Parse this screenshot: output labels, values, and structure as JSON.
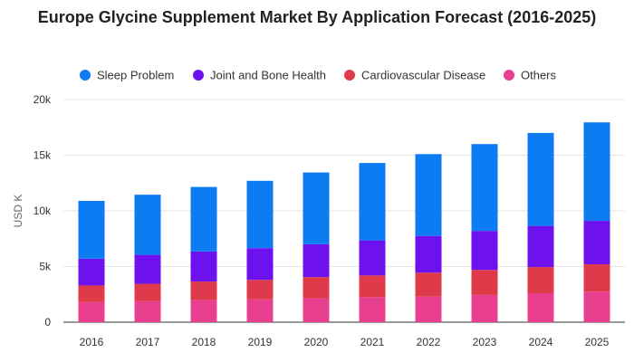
{
  "chart_data": {
    "type": "bar",
    "stacked": true,
    "title": "Europe Glycine Supplement Market By Application Forecast (2016-2025)",
    "ylabel": "USD K",
    "xlabel": "",
    "ylim": [
      0,
      20000
    ],
    "y_ticks": [
      "0",
      "5k",
      "10k",
      "15k",
      "20k"
    ],
    "y_tick_values": [
      0,
      5000,
      10000,
      15000,
      20000
    ],
    "grid": true,
    "legend_position": "top",
    "categories": [
      "2016",
      "2017",
      "2018",
      "2019",
      "2020",
      "2021",
      "2022",
      "2023",
      "2024",
      "2025"
    ],
    "series": [
      {
        "name": "Others",
        "color": "#e8408f",
        "values": [
          1800,
          1900,
          2000,
          2050,
          2150,
          2250,
          2300,
          2450,
          2600,
          2750
        ]
      },
      {
        "name": "Cardiovascular Disease",
        "color": "#df3a49",
        "values": [
          1500,
          1550,
          1650,
          1750,
          1900,
          1950,
          2150,
          2250,
          2350,
          2450
        ]
      },
      {
        "name": "Joint and Bone Health",
        "color": "#6d12ee",
        "values": [
          2400,
          2600,
          2700,
          2850,
          2950,
          3150,
          3300,
          3500,
          3700,
          3900
        ]
      },
      {
        "name": "Sleep Problem",
        "color": "#0d7bf2",
        "values": [
          5200,
          5400,
          5800,
          6050,
          6450,
          6950,
          7350,
          7800,
          8350,
          8850
        ]
      }
    ],
    "legend_order": [
      "Sleep Problem",
      "Joint and Bone Health",
      "Cardiovascular Disease",
      "Others"
    ]
  }
}
